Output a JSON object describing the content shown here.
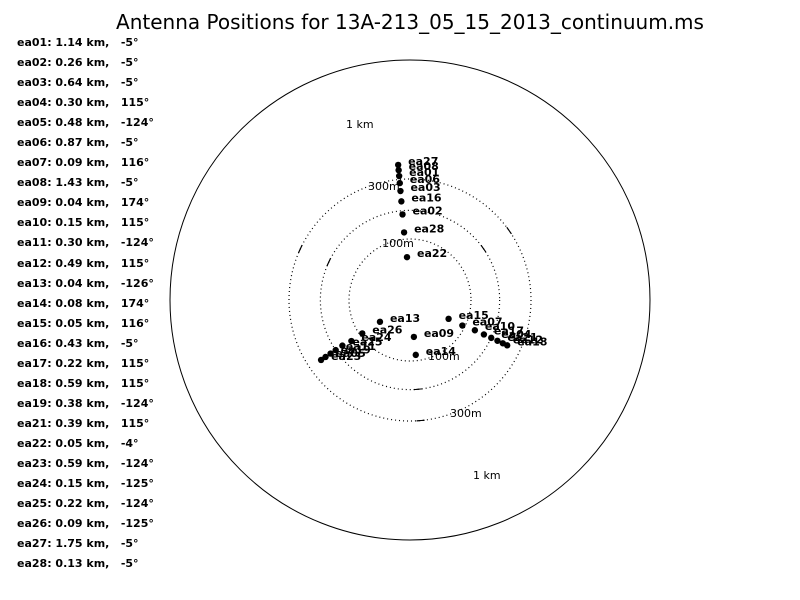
{
  "chart_data": {
    "type": "scatter",
    "title": "Antenna Positions for 13A-213_05_15_2013_continuum.ms",
    "xlabel": "",
    "ylabel": "",
    "scale": "log radial distance",
    "rings": [
      {
        "label": "100m",
        "km": 0.1
      },
      {
        "label": "300m",
        "km": 0.3
      },
      {
        "label": "1 km",
        "km": 1.0
      }
    ],
    "legend_placement": "left",
    "antennas": [
      {
        "name": "ea01",
        "distance_label": "1.14 km",
        "angle_label": "-5°",
        "distance_km": 1.14,
        "angle_deg": -5
      },
      {
        "name": "ea02",
        "distance_label": "0.26 km",
        "angle_label": "-5°",
        "distance_km": 0.26,
        "angle_deg": -5
      },
      {
        "name": "ea03",
        "distance_label": "0.64 km",
        "angle_label": "-5°",
        "distance_km": 0.64,
        "angle_deg": -5
      },
      {
        "name": "ea04",
        "distance_label": "0.30 km",
        "angle_label": "115°",
        "distance_km": 0.3,
        "angle_deg": 115
      },
      {
        "name": "ea05",
        "distance_label": "0.48 km",
        "angle_label": "-124°",
        "distance_km": 0.48,
        "angle_deg": -124
      },
      {
        "name": "ea06",
        "distance_label": "0.87 km",
        "angle_label": "-5°",
        "distance_km": 0.87,
        "angle_deg": -5
      },
      {
        "name": "ea07",
        "distance_label": "0.09 km",
        "angle_label": "116°",
        "distance_km": 0.09,
        "angle_deg": 116
      },
      {
        "name": "ea08",
        "distance_label": "1.43 km",
        "angle_label": "-5°",
        "distance_km": 1.43,
        "angle_deg": -5
      },
      {
        "name": "ea09",
        "distance_label": "0.04 km",
        "angle_label": "174°",
        "distance_km": 0.04,
        "angle_deg": 174
      },
      {
        "name": "ea10",
        "distance_label": "0.15 km",
        "angle_label": "115°",
        "distance_km": 0.15,
        "angle_deg": 115
      },
      {
        "name": "ea11",
        "distance_label": "0.30 km",
        "angle_label": "-124°",
        "distance_km": 0.3,
        "angle_deg": -124
      },
      {
        "name": "ea12",
        "distance_label": "0.49 km",
        "angle_label": "115°",
        "distance_km": 0.49,
        "angle_deg": 115
      },
      {
        "name": "ea13",
        "distance_label": "0.04 km",
        "angle_label": "-126°",
        "distance_km": 0.04,
        "angle_deg": -126
      },
      {
        "name": "ea14",
        "distance_label": "0.08 km",
        "angle_label": "174°",
        "distance_km": 0.08,
        "angle_deg": 174
      },
      {
        "name": "ea15",
        "distance_label": "0.05 km",
        "angle_label": "116°",
        "distance_km": 0.05,
        "angle_deg": 116
      },
      {
        "name": "ea16",
        "distance_label": "0.43 km",
        "angle_label": "-5°",
        "distance_km": 0.43,
        "angle_deg": -5
      },
      {
        "name": "ea17",
        "distance_label": "0.22 km",
        "angle_label": "115°",
        "distance_km": 0.22,
        "angle_deg": 115
      },
      {
        "name": "ea18",
        "distance_label": "0.59 km",
        "angle_label": "115°",
        "distance_km": 0.59,
        "angle_deg": 115
      },
      {
        "name": "ea19",
        "distance_label": "0.38 km",
        "angle_label": "-124°",
        "distance_km": 0.38,
        "angle_deg": -124
      },
      {
        "name": "ea21",
        "distance_label": "0.39 km",
        "angle_label": "115°",
        "distance_km": 0.39,
        "angle_deg": 115
      },
      {
        "name": "ea22",
        "distance_label": "0.05 km",
        "angle_label": "-4°",
        "distance_km": 0.05,
        "angle_deg": -4
      },
      {
        "name": "ea23",
        "distance_label": "0.59 km",
        "angle_label": "-124°",
        "distance_km": 0.59,
        "angle_deg": -124
      },
      {
        "name": "ea24",
        "distance_label": "0.15 km",
        "angle_label": "-125°",
        "distance_km": 0.15,
        "angle_deg": -125
      },
      {
        "name": "ea25",
        "distance_label": "0.22 km",
        "angle_label": "-124°",
        "distance_km": 0.22,
        "angle_deg": -124
      },
      {
        "name": "ea26",
        "distance_label": "0.09 km",
        "angle_label": "-125°",
        "distance_km": 0.09,
        "angle_deg": -125
      },
      {
        "name": "ea27",
        "distance_label": "1.75 km",
        "angle_label": "-5°",
        "distance_km": 1.75,
        "angle_deg": -5
      },
      {
        "name": "ea28",
        "distance_label": "0.13 km",
        "angle_label": "-5°",
        "distance_km": 0.13,
        "angle_deg": -5
      }
    ]
  }
}
